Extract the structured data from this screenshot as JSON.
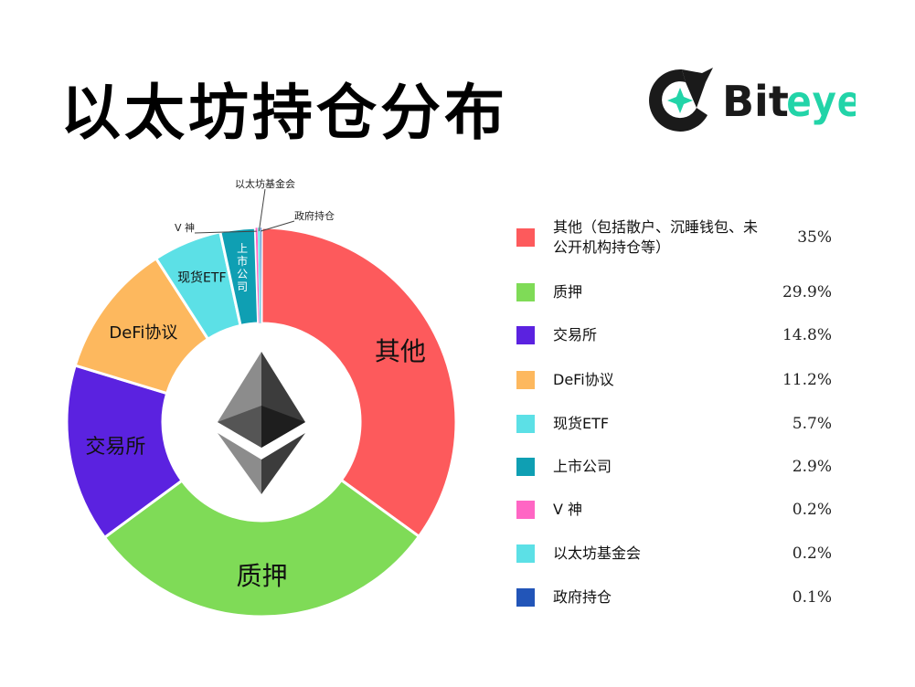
{
  "page": {
    "title": "以太坊持仓分布"
  },
  "logo": {
    "text_main": "Bit",
    "text_accent": "eye",
    "accent_color": "#22d4a8",
    "icon": "biteye-logo-icon"
  },
  "center_icon": "ethereum-icon",
  "chart_data": {
    "type": "pie",
    "title": "以太坊持仓分布",
    "categories": [
      "其他（包括散户、沉睡钱包、未公开机构持仓等）",
      "质押",
      "交易所",
      "DeFi协议",
      "现货ETF",
      "上市公司",
      "V 神",
      "以太坊基金会",
      "政府持仓"
    ],
    "slice_labels": [
      "其他",
      "质押",
      "交易所",
      "DeFi协议",
      "现货ETF",
      "上市公司",
      "V 神",
      "以太坊基金会",
      "政府持仓"
    ],
    "values": [
      35,
      29.9,
      14.8,
      11.2,
      5.7,
      2.9,
      0.2,
      0.2,
      0.1
    ],
    "value_labels": [
      "35%",
      "29.9%",
      "14.8%",
      "11.2%",
      "5.7%",
      "2.9%",
      "0.2%",
      "0.2%",
      "0.1%"
    ],
    "colors": [
      "#fd5a5c",
      "#7fdb57",
      "#5b22e0",
      "#fdb85e",
      "#5ce0e6",
      "#0f9fb3",
      "#ff66c4",
      "#5ce0e6",
      "#2255b8"
    ],
    "legend_placement": "right",
    "donut": true
  },
  "legend": {
    "items": [
      {
        "label": "其他（包括散户、沉睡钱包、未公开机构持仓等）",
        "value": "35%"
      },
      {
        "label": "质押",
        "value": "29.9%"
      },
      {
        "label": "交易所",
        "value": "14.8%"
      },
      {
        "label": "DeFi协议",
        "value": "11.2%"
      },
      {
        "label": "现货ETF",
        "value": "5.7%"
      },
      {
        "label": "上市公司",
        "value": "2.9%"
      },
      {
        "label": "V 神",
        "value": "0.2%"
      },
      {
        "label": "以太坊基金会",
        "value": "0.2%"
      },
      {
        "label": "政府持仓",
        "value": "0.1%"
      }
    ]
  }
}
